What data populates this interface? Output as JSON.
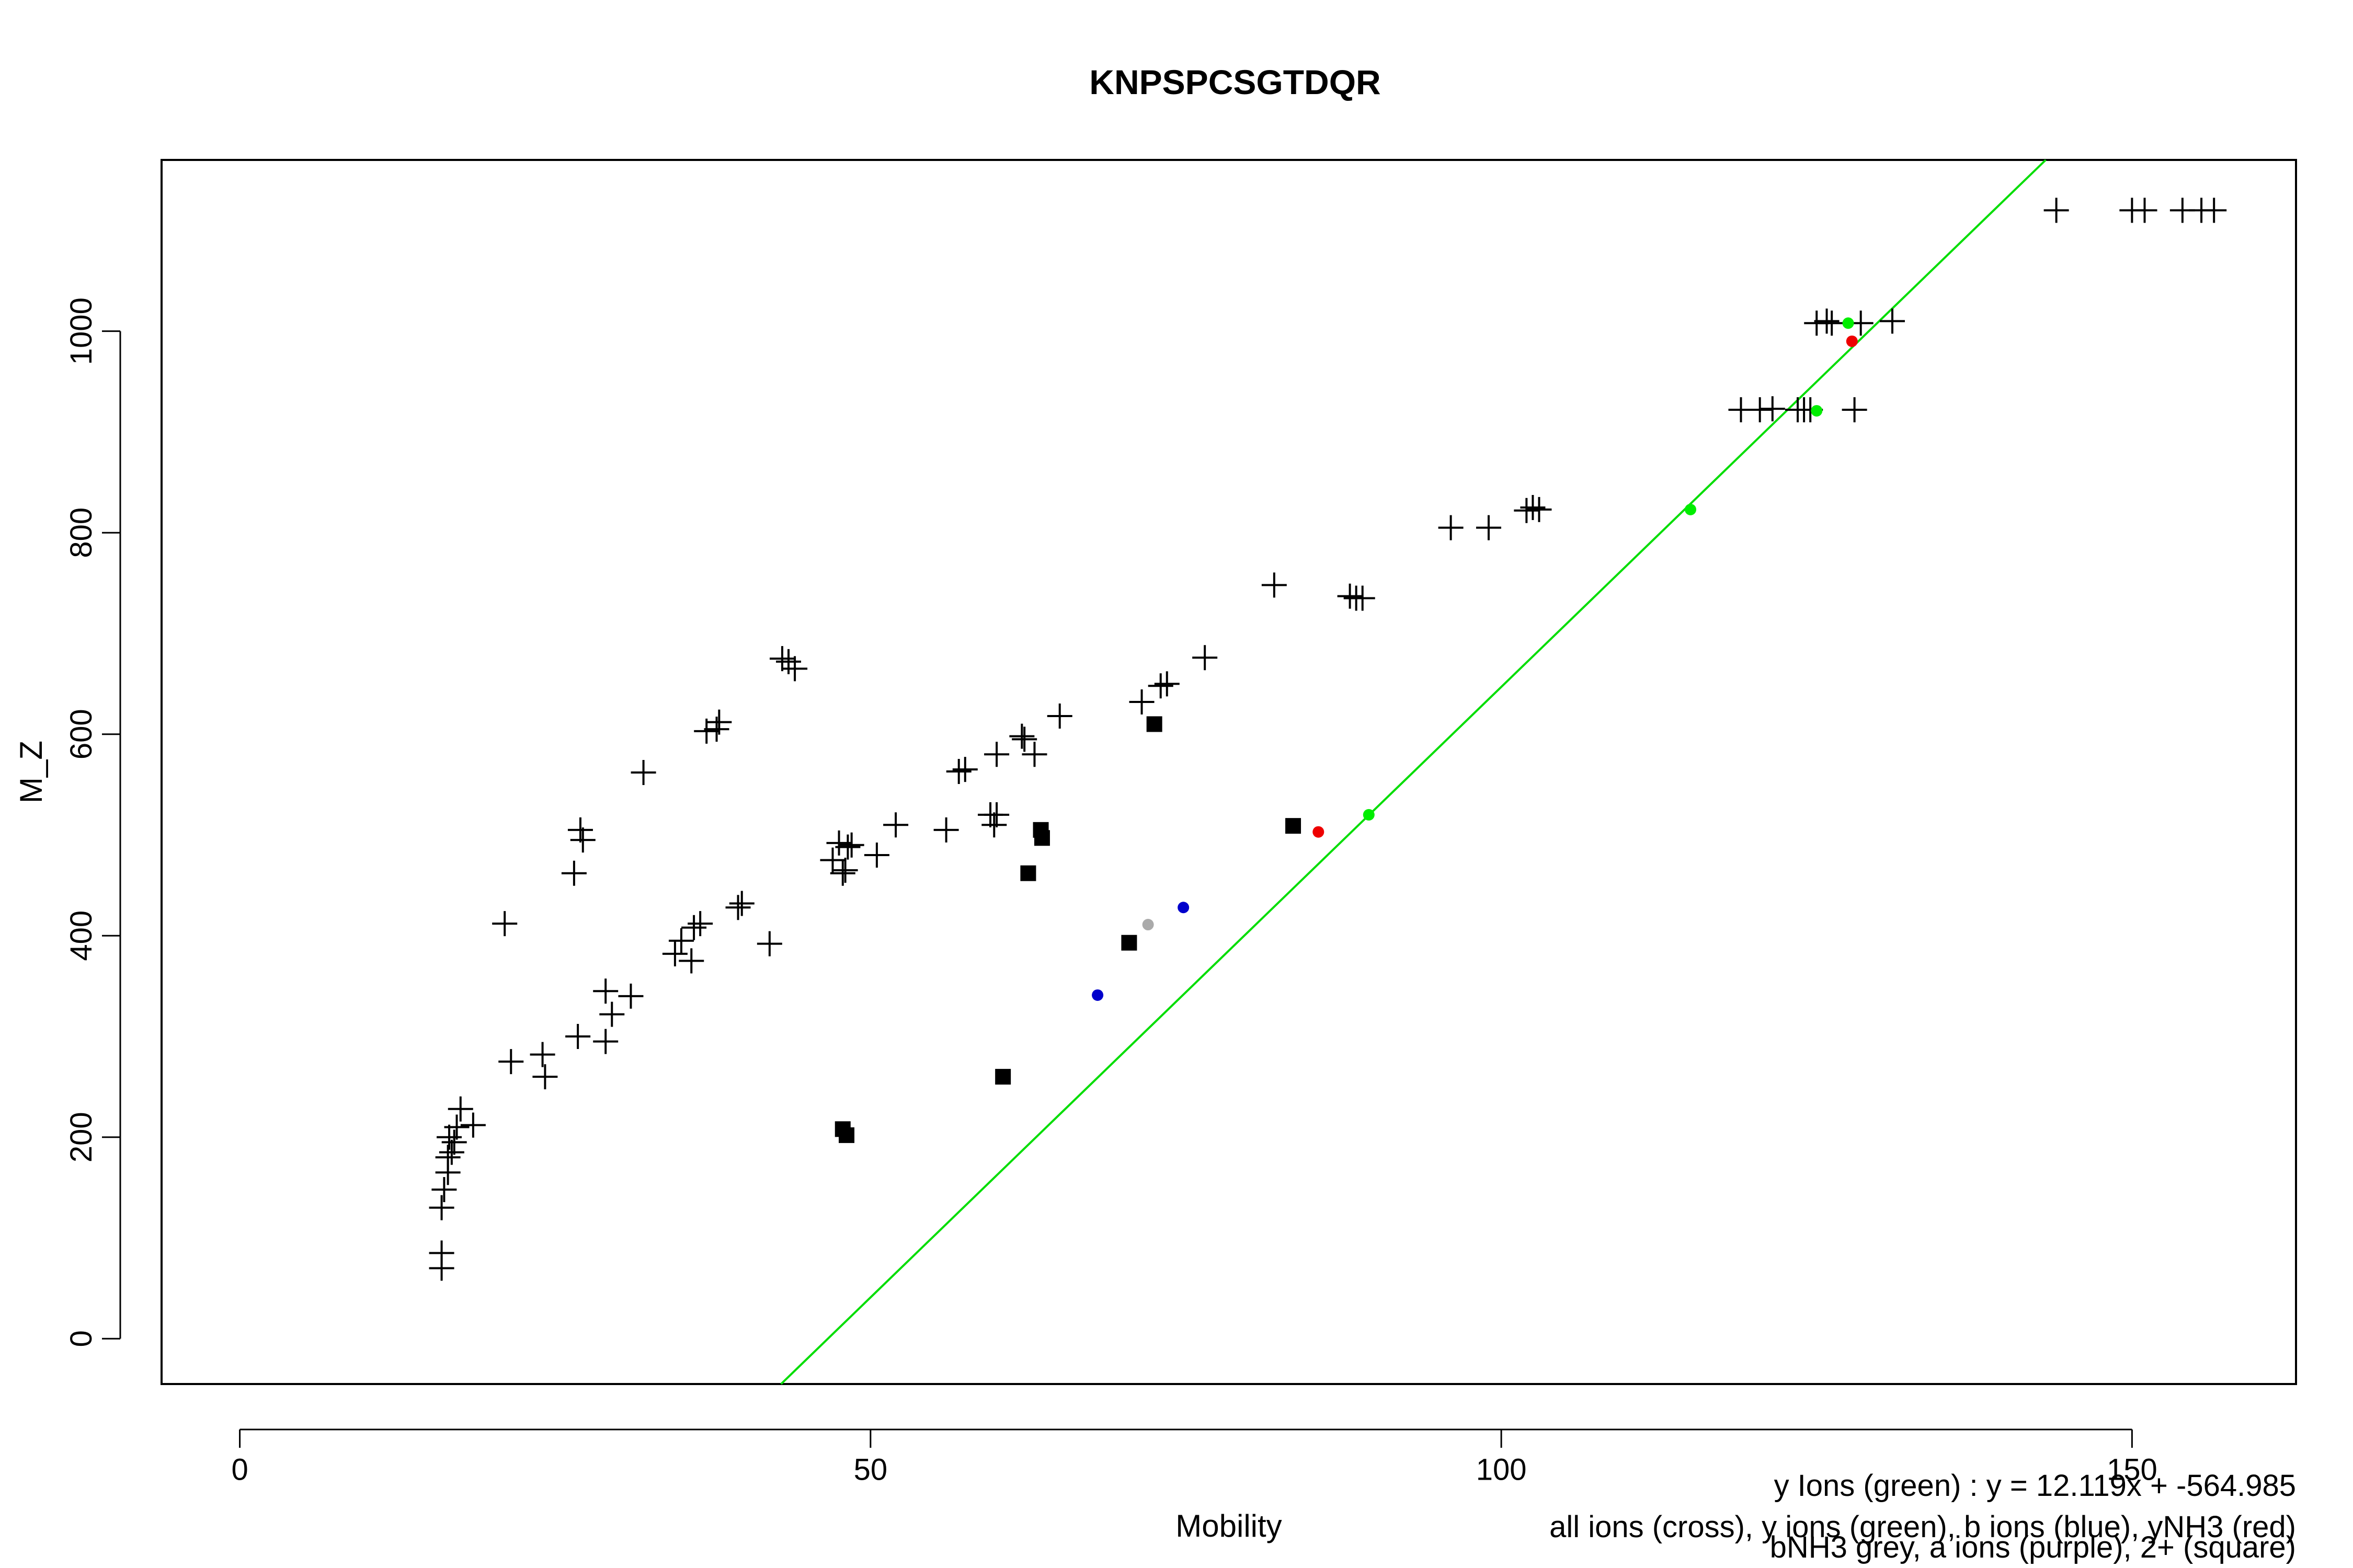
{
  "chart_data": {
    "type": "scatter",
    "title": "KNPSPCSGTDQR",
    "xlabel": "Mobility",
    "ylabel": "M_Z",
    "xlim": [
      -6.2,
      163
    ],
    "ylim": [
      -45,
      1170
    ],
    "xticks": [
      0,
      50,
      100,
      150
    ],
    "yticks": [
      0,
      200,
      400,
      600,
      800,
      1000
    ],
    "grid": false,
    "legend": [
      "y Ions (green) : y = 12.119x + -564.985",
      "all ions (cross), y ions (green), b ions (blue), yNH3 (red)",
      "bNH3 grey, a ions (purple), 2+ (square)"
    ],
    "fit_line": {
      "slope": 12.119,
      "intercept": -564.985,
      "color": "#00dd00"
    },
    "series": [
      {
        "marker": "cross",
        "color": "#000000",
        "points": [
          [
            16,
            70
          ],
          [
            16,
            85
          ],
          [
            16,
            130
          ],
          [
            16.2,
            148
          ],
          [
            16.5,
            165
          ],
          [
            16.5,
            180
          ],
          [
            16.8,
            185
          ],
          [
            17,
            195
          ],
          [
            16.6,
            200
          ],
          [
            17.2,
            210
          ],
          [
            17.5,
            228
          ],
          [
            18.5,
            212
          ],
          [
            21,
            412
          ],
          [
            21.5,
            275
          ],
          [
            24,
            282
          ],
          [
            24.2,
            260
          ],
          [
            26.5,
            462
          ],
          [
            26.8,
            300
          ],
          [
            27,
            505
          ],
          [
            27.2,
            495
          ],
          [
            29,
            345
          ],
          [
            29,
            295
          ],
          [
            29.5,
            322
          ],
          [
            31,
            340
          ],
          [
            32,
            562
          ],
          [
            34.5,
            382
          ],
          [
            35,
            395
          ],
          [
            35.8,
            375
          ],
          [
            36,
            408
          ],
          [
            36.5,
            412
          ],
          [
            37,
            603
          ],
          [
            37.8,
            605
          ],
          [
            38,
            612
          ],
          [
            39.5,
            428
          ],
          [
            39.8,
            432
          ],
          [
            42,
            392
          ],
          [
            43,
            675
          ],
          [
            43.5,
            672
          ],
          [
            44,
            665
          ],
          [
            47,
            475
          ],
          [
            47.5,
            492
          ],
          [
            47.8,
            462
          ],
          [
            48,
            465
          ],
          [
            48.2,
            488
          ],
          [
            48.5,
            490
          ],
          [
            50.5,
            480
          ],
          [
            52,
            510
          ],
          [
            56,
            505
          ],
          [
            57,
            563
          ],
          [
            57.5,
            565
          ],
          [
            59.5,
            520
          ],
          [
            59.8,
            510
          ],
          [
            60,
            520
          ],
          [
            60,
            580
          ],
          [
            62,
            598
          ],
          [
            62.2,
            595
          ],
          [
            63,
            580
          ],
          [
            65,
            618
          ],
          [
            71.5,
            632
          ],
          [
            73,
            648
          ],
          [
            73.5,
            650
          ],
          [
            76.5,
            676
          ],
          [
            82,
            748
          ],
          [
            88,
            737
          ],
          [
            88.5,
            735
          ],
          [
            89,
            735
          ],
          [
            96,
            805
          ],
          [
            99,
            805
          ],
          [
            102,
            822
          ],
          [
            102.5,
            825
          ],
          [
            103,
            823
          ],
          [
            119,
            922
          ],
          [
            120.5,
            922
          ],
          [
            121.5,
            923
          ],
          [
            123.5,
            922
          ],
          [
            124,
            922
          ],
          [
            124.5,
            922
          ],
          [
            125,
            1008
          ],
          [
            125.8,
            1010
          ],
          [
            126.2,
            1008
          ],
          [
            128,
            922
          ],
          [
            128.5,
            1008
          ],
          [
            131,
            1010
          ],
          [
            144,
            1120
          ],
          [
            150,
            1120
          ],
          [
            151,
            1120
          ],
          [
            154,
            1120
          ],
          [
            155.5,
            1120
          ],
          [
            156.5,
            1120
          ]
        ]
      },
      {
        "marker": "square",
        "color": "#000000",
        "points": [
          [
            47.8,
            208
          ],
          [
            48.1,
            202
          ],
          [
            60.5,
            260
          ],
          [
            62.5,
            462
          ],
          [
            63.5,
            505
          ],
          [
            63.6,
            497
          ],
          [
            70.5,
            393
          ],
          [
            72.5,
            610
          ],
          [
            83.5,
            509
          ]
        ]
      },
      {
        "name": "y ions",
        "marker": "dot",
        "color": "#00ee00",
        "points": [
          [
            89.5,
            520
          ],
          [
            115,
            823
          ],
          [
            125,
            921
          ],
          [
            127.5,
            1008
          ]
        ]
      },
      {
        "name": "b ions",
        "marker": "dot",
        "color": "#0000cc",
        "points": [
          [
            68,
            341
          ],
          [
            74.8,
            428
          ]
        ]
      },
      {
        "name": "yNH3",
        "marker": "dot",
        "color": "#ee0000",
        "points": [
          [
            85.5,
            503
          ],
          [
            127.8,
            990
          ]
        ]
      },
      {
        "name": "bNH3",
        "marker": "dot",
        "color": "#aaaaaa",
        "points": [
          [
            72,
            411
          ]
        ]
      }
    ]
  }
}
